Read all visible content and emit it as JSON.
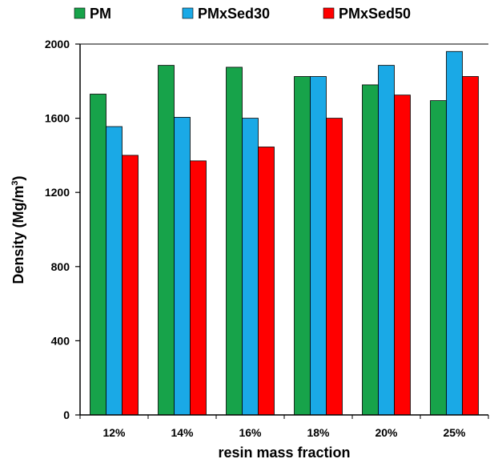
{
  "chart_data": {
    "type": "bar",
    "categories": [
      "12%",
      "14%",
      "16%",
      "18%",
      "20%",
      "25%"
    ],
    "series": [
      {
        "name": "PM",
        "color": "#17a34a",
        "values": [
          1730,
          1885,
          1875,
          1825,
          1780,
          1695
        ]
      },
      {
        "name": "PMxSed30",
        "color": "#1aa9e6",
        "values": [
          1555,
          1605,
          1600,
          1825,
          1885,
          1960
        ]
      },
      {
        "name": "PMxSed50",
        "color": "#ff0000",
        "values": [
          1400,
          1370,
          1445,
          1600,
          1725,
          1825
        ]
      }
    ],
    "xlabel": "resin mass fraction",
    "ylabel": "Density (Mg/m",
    "ylabel_superscript": "3",
    "ylabel_close": ")",
    "ylim": [
      0,
      2000
    ],
    "yticks": [
      0,
      400,
      800,
      1200,
      1600,
      2000
    ],
    "legend_position": "top",
    "grid": false
  }
}
